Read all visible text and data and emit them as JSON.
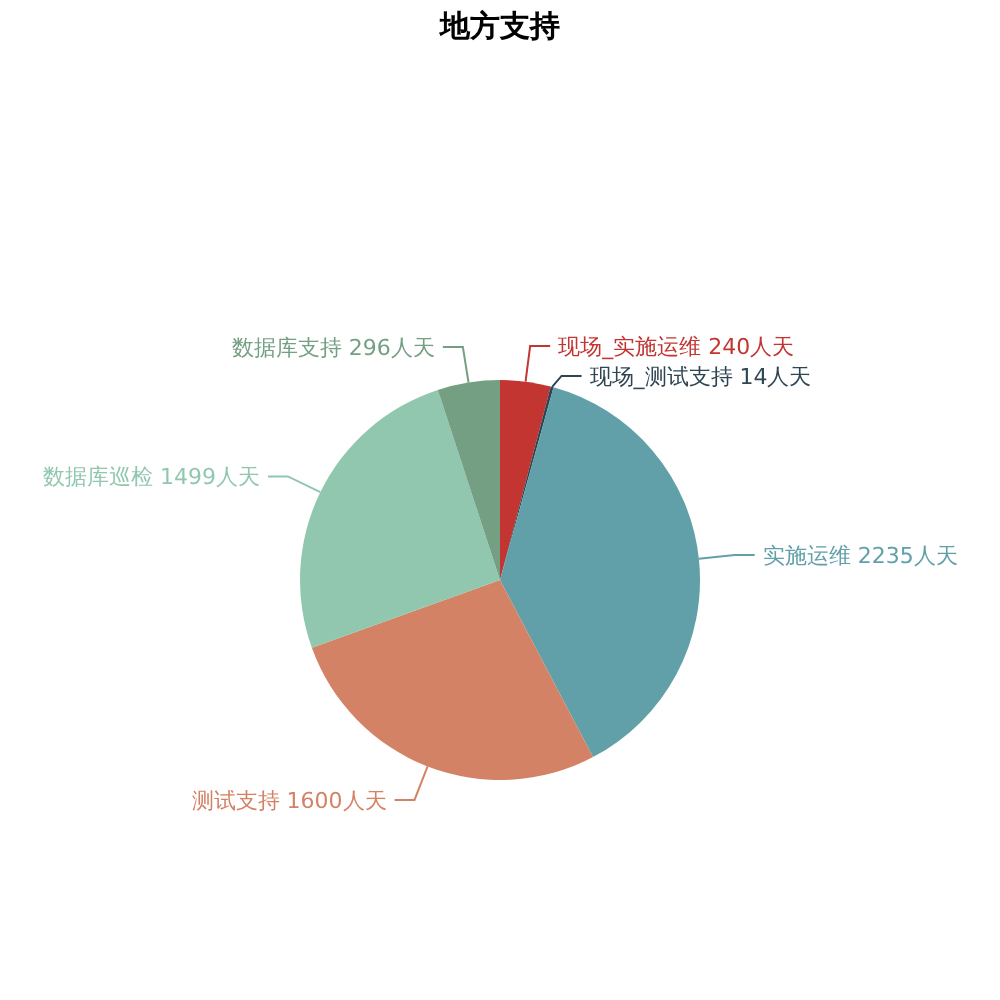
{
  "chart_data": {
    "type": "pie",
    "title": "地方支持",
    "categories": [
      "现场_实施运维",
      "现场_测试支持",
      "实施运维",
      "测试支持",
      "数据库巡检",
      "数据库支持"
    ],
    "values": [
      240,
      14,
      2235,
      1600,
      1499,
      296
    ],
    "value_labels": [
      "240人天",
      "14人天",
      "2235人天",
      "1600人天",
      "1499人天",
      "296人天"
    ],
    "colors": [
      "#c23531",
      "#2f4554",
      "#61a0a8",
      "#d48265",
      "#91c7ae",
      "#749f83"
    ]
  }
}
